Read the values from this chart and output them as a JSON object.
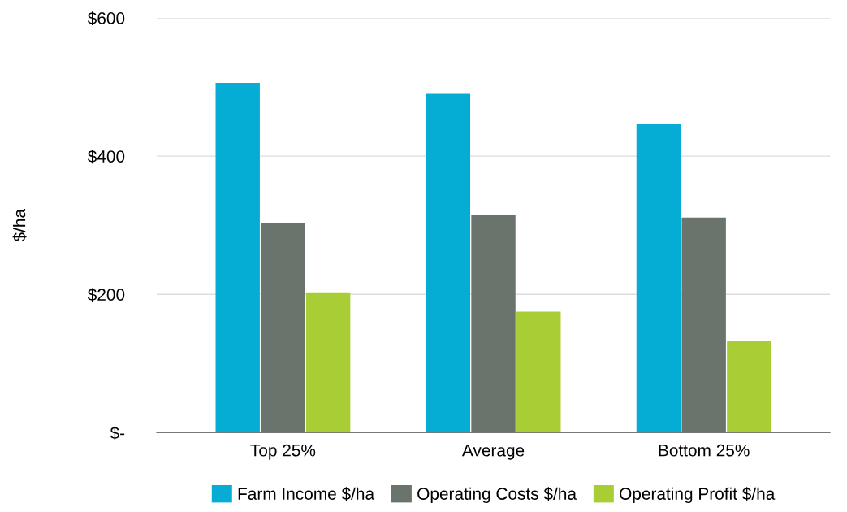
{
  "chart_data": {
    "type": "bar",
    "ylabel": "$/ha",
    "categories": [
      "Top 25%",
      "Average",
      "Bottom 25%"
    ],
    "series": [
      {
        "name": "Farm Income $/ha",
        "color": "#05acd3",
        "values": [
          506,
          490,
          446
        ]
      },
      {
        "name": "Operating Costs $/ha",
        "color": "#6b736d",
        "values": [
          303,
          315,
          311
        ]
      },
      {
        "name": "Operating Profit $/ha",
        "color": "#a8cd35",
        "values": [
          203,
          175,
          133
        ]
      }
    ],
    "ylim": [
      0,
      600
    ],
    "yticks": [
      {
        "value": 0,
        "label": "$-"
      },
      {
        "value": 200,
        "label": "$200"
      },
      {
        "value": 400,
        "label": "$400"
      },
      {
        "value": 600,
        "label": "$600"
      }
    ],
    "grid": "y",
    "legend": "bottom"
  }
}
